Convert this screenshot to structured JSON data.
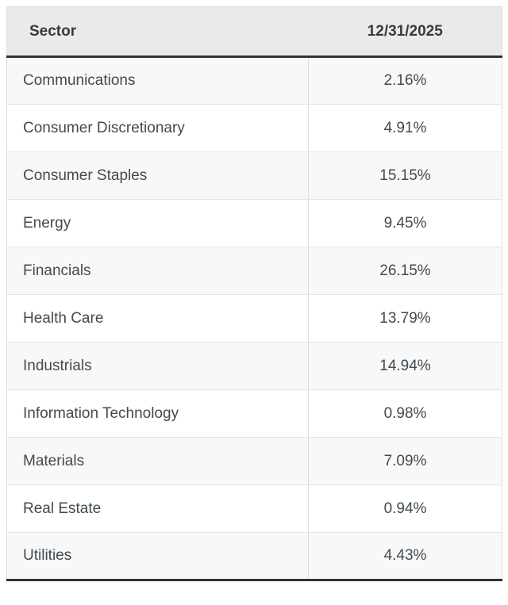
{
  "table": {
    "columns": [
      {
        "label": "Sector"
      },
      {
        "label": "12/31/2025"
      }
    ],
    "rows": [
      {
        "sector": "Communications",
        "value": "2.16%"
      },
      {
        "sector": "Consumer Discretionary",
        "value": "4.91%"
      },
      {
        "sector": "Consumer Staples",
        "value": "15.15%"
      },
      {
        "sector": "Energy",
        "value": "9.45%"
      },
      {
        "sector": "Financials",
        "value": "26.15%"
      },
      {
        "sector": "Health Care",
        "value": "13.79%"
      },
      {
        "sector": "Industrials",
        "value": "14.94%"
      },
      {
        "sector": "Information Technology",
        "value": "0.98%"
      },
      {
        "sector": "Materials",
        "value": "7.09%"
      },
      {
        "sector": "Real Estate",
        "value": "0.94%"
      },
      {
        "sector": "Utilities",
        "value": "4.43%"
      }
    ]
  },
  "colors": {
    "header_bg": "#eaeaea",
    "stripe_bg": "#f8f8f8",
    "row_bg": "#ffffff",
    "dark_border": "#323232",
    "grid_border": "#dddddd",
    "text_color": "#404a52",
    "header_text": "#3a3a3a"
  },
  "chart_data": {
    "type": "table",
    "columns": [
      "Sector",
      "12/31/2025"
    ],
    "categories": [
      "Communications",
      "Consumer Discretionary",
      "Consumer Staples",
      "Energy",
      "Financials",
      "Health Care",
      "Industrials",
      "Information Technology",
      "Materials",
      "Real Estate",
      "Utilities"
    ],
    "values": [
      2.16,
      4.91,
      15.15,
      9.45,
      26.15,
      13.79,
      14.94,
      0.98,
      7.09,
      0.94,
      4.43
    ],
    "unit": "%",
    "as_of_date": "12/31/2025"
  }
}
